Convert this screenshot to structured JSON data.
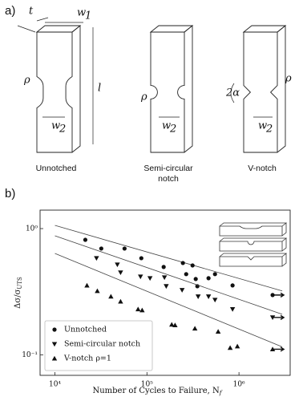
{
  "panel_a": {
    "label": "a)",
    "captions": [
      [
        "Unnotched"
      ],
      [
        "Semi-circular",
        "notch"
      ],
      [
        "V-notch"
      ]
    ],
    "symbols": {
      "t": "t",
      "w1": "w",
      "w1_sub": "1",
      "rho": "ρ",
      "l": "l",
      "w2": "w",
      "w2_sub": "2",
      "alpha": "2α"
    }
  },
  "chart_data": {
    "type": "scatter",
    "label": "b)",
    "x_label": "Number of Cycles to Failure, N",
    "x_label_sub": "f",
    "y_label": "Δσ/σ",
    "y_label_sub": "UTS",
    "log_x": true,
    "log_y": true,
    "xlim": [
      6900,
      3600000
    ],
    "ylim": [
      0.069,
      1.4
    ],
    "xticks": [
      {
        "value": 10000,
        "label": "10⁴"
      },
      {
        "value": 100000,
        "label": "10⁵"
      },
      {
        "value": 1000000,
        "label": "10⁶"
      }
    ],
    "yticks": [
      {
        "value": 0.1,
        "label": "10⁻¹"
      },
      {
        "value": 1,
        "label": "10⁰"
      }
    ],
    "legend": "lower left",
    "series": [
      {
        "name": "Unnotched",
        "marker": "o",
        "color": "#111111",
        "x": [
          21400,
          31900,
          57100,
          86900,
          152000,
          246000,
          313000,
          267000,
          339000,
          467000,
          549000,
          852000,
          353000
        ],
        "values": [
          0.815,
          0.695,
          0.695,
          0.583,
          0.497,
          0.534,
          0.511,
          0.436,
          0.399,
          0.405,
          0.436,
          0.355,
          0.35
        ],
        "runouts": {
          "x": [
            2320000
          ],
          "values": [
            0.298
          ]
        },
        "fit": {
          "x": [
            10000,
            2950000
          ],
          "values": [
            1.06,
            0.321
          ]
        }
      },
      {
        "name": "Semi-circular notch",
        "marker": "v",
        "color": "#111111",
        "x": [
          28300,
          47700,
          51700,
          85100,
          108000,
          155000,
          162000,
          241000,
          360000,
          467000,
          549000,
          852000
        ],
        "values": [
          0.583,
          0.519,
          0.449,
          0.417,
          0.405,
          0.411,
          0.35,
          0.326,
          0.29,
          0.29,
          0.273,
          0.23
        ],
        "runouts": {
          "x": [
            2320000
          ],
          "values": [
            0.198
          ]
        },
        "fit": {
          "x": [
            10000,
            2950000
          ],
          "values": [
            0.877,
            0.21
          ]
        }
      },
      {
        "name": "V-notch ρ=1",
        "marker": "^",
        "color": "#111111",
        "x": [
          22300,
          28900,
          40600,
          51700,
          80100,
          88700,
          186000,
          202000,
          332000,
          594000,
          802000,
          961000
        ],
        "values": [
          0.355,
          0.321,
          0.29,
          0.265,
          0.23,
          0.226,
          0.174,
          0.172,
          0.162,
          0.153,
          0.114,
          0.117
        ],
        "runouts": {
          "x": [
            2320000
          ],
          "values": [
            0.111
          ]
        },
        "fit": {
          "x": [
            10000,
            2950000
          ],
          "values": [
            0.636,
            0.116
          ]
        }
      }
    ]
  }
}
